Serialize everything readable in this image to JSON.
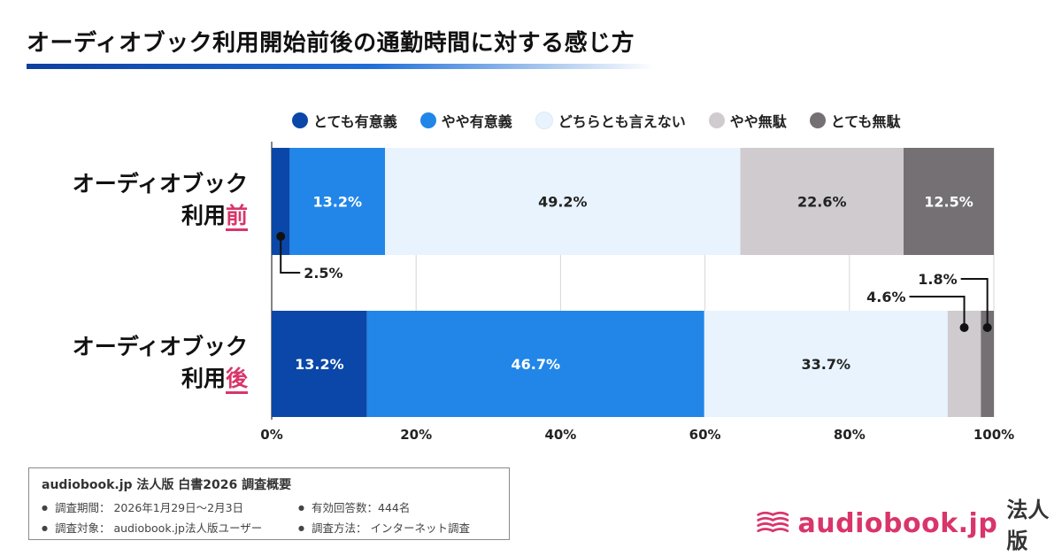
{
  "title": "オーディオブック利用開始前後の通勤時間に対する感じ方",
  "legend": [
    {
      "label": "とても有意義",
      "color": "#0a47a8"
    },
    {
      "label": "やや有意義",
      "color": "#2186e8"
    },
    {
      "label": "どちらとも言えない",
      "color": "#e8f3fd"
    },
    {
      "label": "やや無駄",
      "color": "#cfcbce"
    },
    {
      "label": "とても無駄",
      "color": "#747073"
    }
  ],
  "rows": [
    {
      "line1": "オーディオブック",
      "line2_plain": "利用",
      "line2_highlight": "前"
    },
    {
      "line1": "オーディオブック",
      "line2_plain": "利用",
      "line2_highlight": "後"
    }
  ],
  "chart_data": {
    "type": "bar",
    "orientation": "horizontal",
    "stacked": true,
    "categories": [
      "オーディオブック利用前",
      "オーディオブック利用後"
    ],
    "series": [
      {
        "name": "とても有意義",
        "values": [
          2.5,
          13.2
        ],
        "color": "#0a47a8"
      },
      {
        "name": "やや有意義",
        "values": [
          13.2,
          46.7
        ],
        "color": "#2186e8"
      },
      {
        "name": "どちらとも言えない",
        "values": [
          49.2,
          33.7
        ],
        "color": "#e8f3fd"
      },
      {
        "name": "やや無駄",
        "values": [
          22.6,
          4.6
        ],
        "color": "#cfcbce"
      },
      {
        "name": "とても無駄",
        "values": [
          12.5,
          1.8
        ],
        "color": "#747073"
      }
    ],
    "xlim": [
      0,
      100
    ],
    "xticks": [
      "0%",
      "20%",
      "40%",
      "60%",
      "80%",
      "100%"
    ],
    "grid": true,
    "legend_position": "top"
  },
  "survey": {
    "title": "audiobook.jp 法人版 白書2026 調査概要",
    "items": [
      "調査期間： 2026年1月29日～2月3日",
      "有効回答数：444名",
      "調査対象： audiobook.jp法人版ユーザー",
      "調査方法： インターネット調査"
    ]
  },
  "brand": {
    "name": "audiobook.jp",
    "sub": "法人版",
    "logo_color": "#d9356b"
  }
}
